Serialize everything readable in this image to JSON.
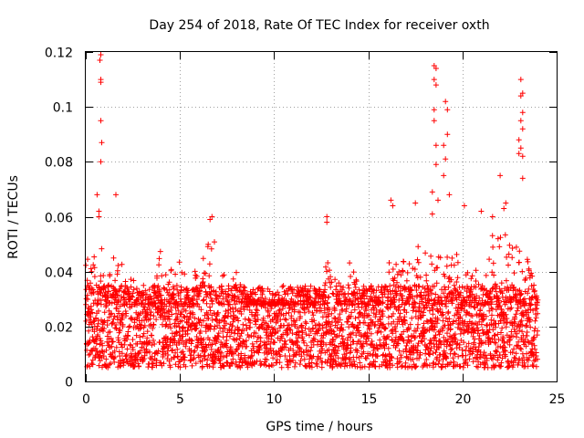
{
  "chart_data": {
    "type": "scatter",
    "title": "Day 254 of 2018, Rate Of TEC Index for receiver oxth",
    "xlabel": "GPS time / hours",
    "ylabel": "ROTI / TECUs",
    "xlim": [
      0,
      25
    ],
    "ylim": [
      0,
      0.12
    ],
    "x_ticks": [
      "0",
      "5",
      "10",
      "15",
      "20",
      "25"
    ],
    "y_ticks": [
      "0",
      "0.02",
      "0.04",
      "0.06",
      "0.08",
      "0.1",
      "0.12"
    ],
    "grid": true,
    "marker": "plus",
    "series_color": "#ff0000",
    "x_coverage": [
      0,
      24
    ],
    "typical_range": [
      0.005,
      0.035
    ],
    "envelope": [
      [
        0.0,
        0.045
      ],
      [
        0.5,
        0.055
      ],
      [
        1.0,
        0.05
      ],
      [
        1.5,
        0.045
      ],
      [
        2.0,
        0.045
      ],
      [
        2.5,
        0.04
      ],
      [
        3.0,
        0.035
      ],
      [
        3.5,
        0.035
      ],
      [
        4.0,
        0.05
      ],
      [
        4.5,
        0.04
      ],
      [
        5.0,
        0.05
      ],
      [
        5.5,
        0.035
      ],
      [
        6.0,
        0.045
      ],
      [
        6.5,
        0.058
      ],
      [
        7.0,
        0.05
      ],
      [
        7.5,
        0.035
      ],
      [
        8.0,
        0.04
      ],
      [
        8.5,
        0.035
      ],
      [
        9.0,
        0.03
      ],
      [
        9.5,
        0.03
      ],
      [
        10.0,
        0.03
      ],
      [
        10.5,
        0.03
      ],
      [
        11.0,
        0.03
      ],
      [
        11.5,
        0.035
      ],
      [
        12.0,
        0.03
      ],
      [
        12.5,
        0.04
      ],
      [
        13.0,
        0.045
      ],
      [
        13.5,
        0.035
      ],
      [
        14.0,
        0.045
      ],
      [
        14.5,
        0.035
      ],
      [
        15.0,
        0.035
      ],
      [
        15.5,
        0.03
      ],
      [
        16.0,
        0.04
      ],
      [
        16.5,
        0.055
      ],
      [
        17.0,
        0.04
      ],
      [
        17.5,
        0.05
      ],
      [
        18.0,
        0.05
      ],
      [
        18.5,
        0.055
      ],
      [
        19.0,
        0.05
      ],
      [
        19.5,
        0.045
      ],
      [
        20.0,
        0.05
      ],
      [
        20.5,
        0.045
      ],
      [
        21.0,
        0.045
      ],
      [
        21.5,
        0.055
      ],
      [
        22.0,
        0.06
      ],
      [
        22.5,
        0.05
      ],
      [
        23.0,
        0.05
      ],
      [
        23.5,
        0.045
      ],
      [
        24.0,
        0.035
      ]
    ],
    "outliers": [
      {
        "x": 0.8,
        "y": 0.119
      },
      {
        "x": 0.75,
        "y": 0.117
      },
      {
        "x": 0.8,
        "y": 0.11
      },
      {
        "x": 0.8,
        "y": 0.109
      },
      {
        "x": 0.8,
        "y": 0.095
      },
      {
        "x": 0.85,
        "y": 0.087
      },
      {
        "x": 0.8,
        "y": 0.08
      },
      {
        "x": 0.6,
        "y": 0.068
      },
      {
        "x": 1.6,
        "y": 0.068
      },
      {
        "x": 0.7,
        "y": 0.062
      },
      {
        "x": 0.7,
        "y": 0.06
      },
      {
        "x": 6.7,
        "y": 0.06
      },
      {
        "x": 6.6,
        "y": 0.059
      },
      {
        "x": 12.8,
        "y": 0.06
      },
      {
        "x": 12.8,
        "y": 0.058
      },
      {
        "x": 16.2,
        "y": 0.066
      },
      {
        "x": 16.3,
        "y": 0.064
      },
      {
        "x": 17.5,
        "y": 0.065
      },
      {
        "x": 18.5,
        "y": 0.115
      },
      {
        "x": 18.6,
        "y": 0.114
      },
      {
        "x": 18.5,
        "y": 0.11
      },
      {
        "x": 18.6,
        "y": 0.108
      },
      {
        "x": 18.5,
        "y": 0.099
      },
      {
        "x": 18.5,
        "y": 0.095
      },
      {
        "x": 18.6,
        "y": 0.086
      },
      {
        "x": 18.6,
        "y": 0.079
      },
      {
        "x": 18.4,
        "y": 0.069
      },
      {
        "x": 18.7,
        "y": 0.066
      },
      {
        "x": 18.4,
        "y": 0.061
      },
      {
        "x": 19.1,
        "y": 0.102
      },
      {
        "x": 19.2,
        "y": 0.099
      },
      {
        "x": 19.2,
        "y": 0.09
      },
      {
        "x": 19.0,
        "y": 0.086
      },
      {
        "x": 19.1,
        "y": 0.081
      },
      {
        "x": 19.0,
        "y": 0.075
      },
      {
        "x": 19.3,
        "y": 0.068
      },
      {
        "x": 20.1,
        "y": 0.064
      },
      {
        "x": 21.0,
        "y": 0.062
      },
      {
        "x": 21.6,
        "y": 0.06
      },
      {
        "x": 22.0,
        "y": 0.075
      },
      {
        "x": 22.3,
        "y": 0.065
      },
      {
        "x": 22.2,
        "y": 0.063
      },
      {
        "x": 23.1,
        "y": 0.11
      },
      {
        "x": 23.2,
        "y": 0.105
      },
      {
        "x": 23.1,
        "y": 0.104
      },
      {
        "x": 23.2,
        "y": 0.098
      },
      {
        "x": 23.1,
        "y": 0.095
      },
      {
        "x": 23.2,
        "y": 0.092
      },
      {
        "x": 23.0,
        "y": 0.088
      },
      {
        "x": 23.1,
        "y": 0.085
      },
      {
        "x": 23.0,
        "y": 0.083
      },
      {
        "x": 23.2,
        "y": 0.082
      },
      {
        "x": 23.2,
        "y": 0.074
      }
    ]
  }
}
